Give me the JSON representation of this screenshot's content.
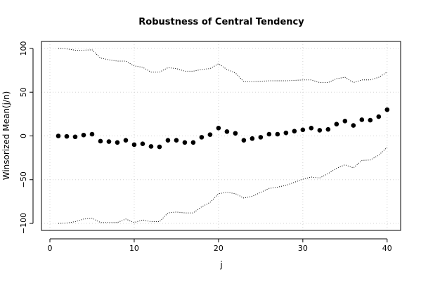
{
  "chart_data": {
    "type": "scatter",
    "title": "Robustness of Central Tendency",
    "xlabel": "j",
    "ylabel": "Winsorized Mean(j/n)",
    "xlim": [
      -1,
      41.6
    ],
    "ylim": [
      -108,
      108
    ],
    "x_ticks": [
      0,
      10,
      20,
      30,
      40
    ],
    "y_ticks": [
      -100,
      -50,
      0,
      50,
      100
    ],
    "grid": true,
    "x": [
      1,
      2,
      3,
      4,
      5,
      6,
      7,
      8,
      9,
      10,
      11,
      12,
      13,
      14,
      15,
      16,
      17,
      18,
      19,
      20,
      21,
      22,
      23,
      24,
      25,
      26,
      27,
      28,
      29,
      30,
      31,
      32,
      33,
      34,
      35,
      36,
      37,
      38,
      39,
      40
    ],
    "series": [
      {
        "style": "points",
        "values": [
          0,
          -0.5,
          -1,
          1,
          2,
          -6,
          -6.5,
          -7.5,
          -5,
          -10,
          -9,
          -12,
          -12.5,
          -5,
          -5,
          -7.5,
          -7.5,
          -1.5,
          1.5,
          9,
          5,
          3,
          -5,
          -3,
          -1.5,
          2,
          2,
          3.5,
          5.5,
          7,
          9,
          6.5,
          7.5,
          13.5,
          17,
          12,
          18.5,
          18,
          22,
          30
        ]
      },
      {
        "style": "dotted",
        "values": [
          100,
          99.5,
          98,
          98,
          98.5,
          89,
          87,
          85.5,
          85.5,
          80,
          78.5,
          73,
          73,
          78,
          77,
          74,
          74,
          76,
          77,
          82.5,
          76,
          72,
          62,
          62,
          62.5,
          63,
          63,
          63,
          63.5,
          64,
          64,
          61,
          61,
          65.5,
          67,
          61,
          64,
          64,
          67,
          73
        ]
      },
      {
        "style": "dotted",
        "values": [
          -100,
          -99.5,
          -98,
          -95,
          -94,
          -99,
          -99,
          -99,
          -95,
          -99,
          -96,
          -98,
          -98,
          -88,
          -87,
          -88,
          -88,
          -81,
          -76,
          -66,
          -64.5,
          -66,
          -71,
          -69,
          -64.5,
          -60,
          -58.5,
          -56.5,
          -53,
          -49.5,
          -47,
          -48,
          -43,
          -37,
          -33,
          -36.5,
          -28,
          -27.5,
          -22,
          -13
        ]
      }
    ]
  }
}
